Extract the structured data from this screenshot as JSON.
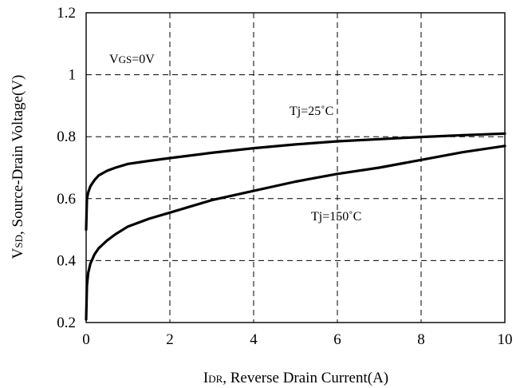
{
  "chart_data": {
    "type": "line",
    "title": "",
    "xlabel": {
      "main": "I",
      "sub": "DR",
      "rest": ", Reverse Drain Current(A)"
    },
    "ylabel": {
      "main": "V",
      "sub": "SD",
      "rest": ", Source-Drain Voltage(V)"
    },
    "xlim": [
      0,
      10
    ],
    "ylim": [
      0.2,
      1.2
    ],
    "x_ticks": [
      "0",
      "2",
      "4",
      "6",
      "8",
      "10"
    ],
    "y_ticks": [
      "0.2",
      "0.4",
      "0.6",
      "0.8",
      "1",
      "1.2"
    ],
    "grid": true,
    "annotations": [
      {
        "id": "vgs",
        "main": "V",
        "sub": "GS",
        "rest": "=0V"
      },
      {
        "id": "t25",
        "text": "Tj=25˚C"
      },
      {
        "id": "t150",
        "text": "Tj=150˚C"
      }
    ],
    "series": [
      {
        "x": [
          0.0,
          0.02,
          0.05,
          0.1,
          0.2,
          0.3,
          0.5,
          0.7,
          1.0,
          1.5,
          2.0,
          3.0,
          4.0,
          5.0,
          6.0,
          7.0,
          8.0,
          9.0,
          10.0
        ],
        "y": [
          0.5,
          0.6,
          0.62,
          0.64,
          0.66,
          0.675,
          0.69,
          0.7,
          0.712,
          0.722,
          0.731,
          0.748,
          0.763,
          0.775,
          0.785,
          0.792,
          0.799,
          0.805,
          0.81
        ]
      },
      {
        "x": [
          0.0,
          0.02,
          0.05,
          0.1,
          0.2,
          0.3,
          0.5,
          0.7,
          1.0,
          1.5,
          2.0,
          3.0,
          4.0,
          5.0,
          6.0,
          7.0,
          8.0,
          9.0,
          10.0
        ],
        "y": [
          0.21,
          0.32,
          0.36,
          0.39,
          0.42,
          0.44,
          0.465,
          0.485,
          0.51,
          0.535,
          0.555,
          0.595,
          0.625,
          0.655,
          0.68,
          0.7,
          0.725,
          0.75,
          0.77
        ]
      }
    ]
  }
}
